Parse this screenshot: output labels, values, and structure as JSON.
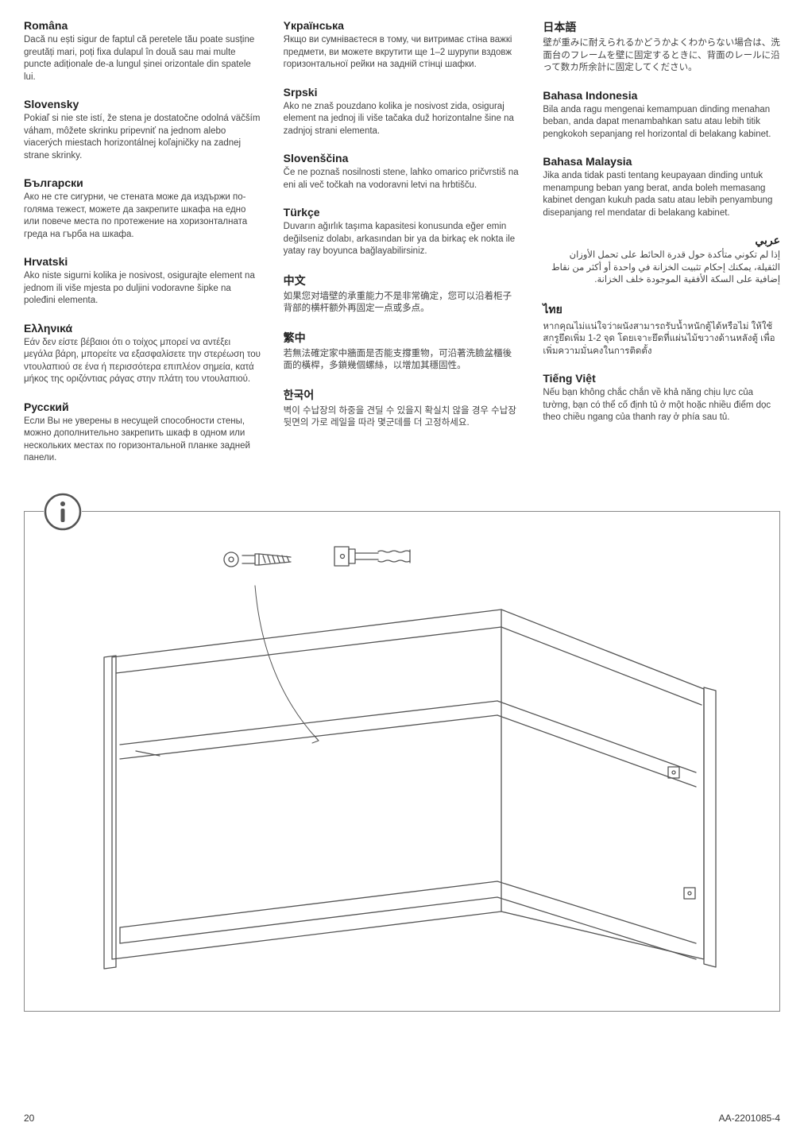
{
  "colors": {
    "text": "#333333",
    "heading": "#222222",
    "body": "#444444",
    "border": "#888888",
    "background": "#ffffff",
    "stroke": "#555555"
  },
  "typography": {
    "heading_fontsize": 14,
    "heading_weight": "bold",
    "body_fontsize": 11.5,
    "body_lineheight": 1.35,
    "footer_fontsize": 12
  },
  "columns": [
    [
      {
        "lang": "Româna",
        "text": "Dacă nu ești sigur de faptul că peretele tău poate susține greutăți mari, poți fixa dulapul în două sau mai multe puncte adiționale de-a lungul șinei orizontale din spatele lui."
      },
      {
        "lang": "Slovensky",
        "text": "Pokiaľ si nie ste istí, že stena je dostatočne odolná väčším váham, môžete skrinku pripevniť na jednom alebo viacerých miestach horizontálnej koľajničky na zadnej strane skrinky."
      },
      {
        "lang": "Български",
        "text": "Ако не сте сигурни, че стената може да издържи по-голяма тежест, можете да закрепите шкафа на едно или повече места по протежение на хоризонталната греда на гърба на шкафа."
      },
      {
        "lang": "Hrvatski",
        "text": "Ako niste sigurni kolika je nosivost, osigurajte element na jednom ili više mjesta po duljini vodoravne šipke na poleđini elementa."
      },
      {
        "lang": "Ελληνικά",
        "text": "Εάν δεν είστε βέβαιοι ότι ο τοίχος μπορεί να αντέξει μεγάλα βάρη, μπορείτε να εξασφαλίσετε την στερέωση του ντουλαπιού σε ένα ή περισσότερα επιπλέον σημεία, κατά μήκος της οριζόντιας ράγας στην πλάτη του ντουλαπιού."
      },
      {
        "lang": "Русский",
        "text": "Если Вы не уверены в несущей способности стены, можно дополнительно закрепить шкаф в одном или нескольких местах по горизонтальной планке задней панели."
      }
    ],
    [
      {
        "lang": "Yкраїнська",
        "text": "Якщо ви сумніваєтеся в тому, чи витримає стіна важкі предмети, ви можете вкрутити ще 1–2 шурупи вздовж горизонтальної рейки на задній стінці шафки."
      },
      {
        "lang": "Srpski",
        "text": "Ako ne znaš pouzdano kolika je nosivost zida, osiguraj element na jednoj ili više tačaka duž horizontalne šine na zadnjoj strani elementa."
      },
      {
        "lang": "Slovenščina",
        "text": "Če ne poznaš nosilnosti stene, lahko omarico pričvrstiš na eni ali več točkah na vodoravni letvi na hrbtišču."
      },
      {
        "lang": "Türkçe",
        "text": "Duvarın ağırlık taşıma kapasitesi konusunda eğer emin değilseniz dolabı, arkasından bir ya da birkaç ek nokta ile yatay ray boyunca bağlayabilirsiniz."
      },
      {
        "lang": "中文",
        "text": "如果您对墙壁的承重能力不是非常确定，您可以沿着柜子背部的横杆额外再固定一点或多点。"
      },
      {
        "lang": "繁中",
        "text": "若無法確定家中牆面是否能支撐重物，可沿著洗臉盆櫃後面的橫桿，多鎖幾個螺絲，以增加其穩固性。"
      },
      {
        "lang": "한국어",
        "text": "벽이 수납장의 하중을 견딜 수 있을지 확실치 않을 경우 수납장 뒷면의 가로 레일을 따라 몇군데를 더 고정하세요."
      }
    ],
    [
      {
        "lang": "日本語",
        "text": "壁が重みに耐えられるかどうかよくわからない場合は、洗面台のフレームを壁に固定するときに、背面のレールに沿って数カ所余計に固定してください。"
      },
      {
        "lang": "Bahasa Indonesia",
        "text": "Bila anda ragu mengenai kemampuan dinding menahan beban, anda dapat menambahkan satu atau lebih titik pengkokoh sepanjang rel horizontal di belakang kabinet."
      },
      {
        "lang": "Bahasa Malaysia",
        "text": "Jika anda tidak pasti tentang keupayaan dinding untuk menampung beban yang berat, anda boleh memasang kabinet dengan kukuh pada satu atau lebih penyambung disepanjang rel mendatar di belakang kabinet."
      },
      {
        "lang": "عربي",
        "text": "إذا لم تكوني متأكدة حول قدرة الحائط على تحمل الأوزان الثقيلة، يمكنك إحكام تثبيت الخزانة في واحدة أو أكثر من نقاط إضافية على السكة الأفقية الموجودة خلف الخزانة.",
        "rtl": true
      },
      {
        "lang": "ไทย",
        "text": "หากคุณไม่แน่ใจว่าผนังสามารถรับน้ำหนักตู้ได้หรือไม่ ให้ใช้สกรูยึดเพิ่ม 1-2 จุด โดยเจาะยึดที่แผ่นไม้ขวางด้านหลังตู้ เพื่อเพิ่มความมั่นคงในการติดตั้ง"
      },
      {
        "lang": "Tiếng Việt",
        "text": "Nếu bạn không chắc chắn về khả năng chịu lực của tường, bạn có thể cố định tủ ở một hoặc nhiều điểm dọc theo chiều ngang của thanh ray ở phía sau tủ."
      }
    ]
  ],
  "diagram": {
    "border_color": "#888888",
    "border_width": 1.5,
    "icon": "info",
    "stroke": "#555555",
    "stroke_width": 1.3,
    "background": "#ffffff"
  },
  "footer": {
    "page": "20",
    "code": "AA-2201085-4"
  }
}
